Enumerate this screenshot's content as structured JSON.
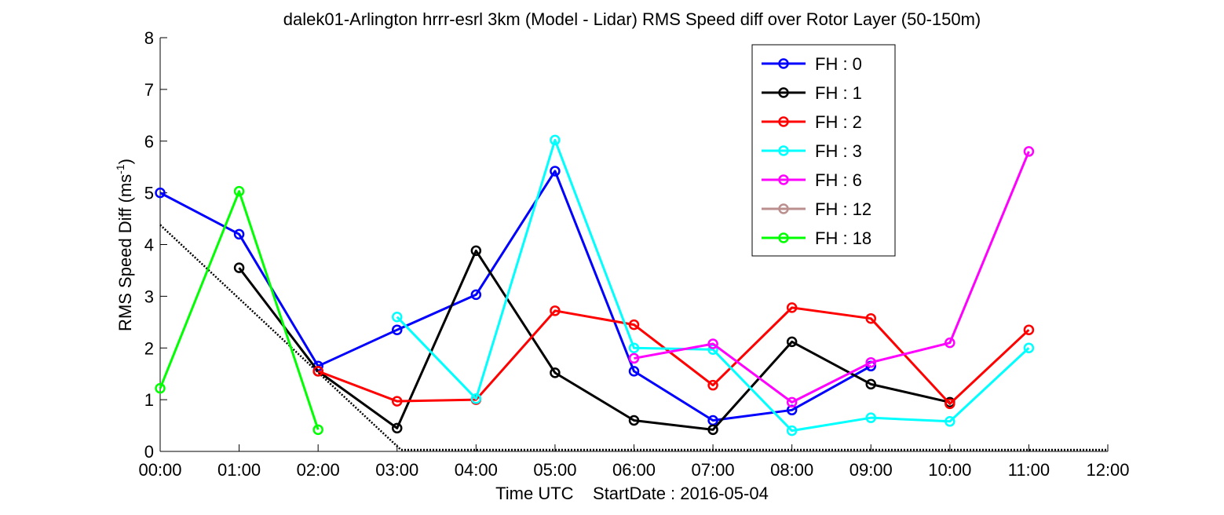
{
  "chart_data": {
    "type": "line",
    "title": "dalek01-Arlington hrrr-esrl 3km (Model - Lidar) RMS Speed diff over Rotor Layer (50-150m)",
    "xlabel": "Time UTC    StartDate : 2016-05-04",
    "ylabel_main": "RMS Speed Diff (ms",
    "ylabel_sup": "-1",
    "ylabel_close": ")",
    "xlim": [
      0,
      12
    ],
    "ylim": [
      0,
      8
    ],
    "x_ticks": [
      0,
      1,
      2,
      3,
      4,
      5,
      6,
      7,
      8,
      9,
      10,
      11,
      12
    ],
    "x_tick_labels": [
      "00:00",
      "01:00",
      "02:00",
      "03:00",
      "04:00",
      "05:00",
      "06:00",
      "07:00",
      "08:00",
      "09:00",
      "10:00",
      "11:00",
      "12:00"
    ],
    "y_ticks": [
      0,
      1,
      2,
      3,
      4,
      5,
      6,
      7,
      8
    ],
    "y_tick_labels": [
      "0",
      "1",
      "2",
      "3",
      "4",
      "5",
      "6",
      "7",
      "8"
    ],
    "grid": false,
    "legend_position": "top-right",
    "series": [
      {
        "name": "FH : 0",
        "color": "#0000ff",
        "x": [
          0,
          1,
          2,
          3,
          4,
          5,
          6,
          7,
          8,
          9
        ],
        "y": [
          5.0,
          4.2,
          1.65,
          2.35,
          3.03,
          5.42,
          1.55,
          0.6,
          0.8,
          1.65
        ]
      },
      {
        "name": "FH : 1",
        "color": "#000000",
        "x": [
          1,
          2,
          3,
          4,
          5,
          6,
          7,
          8,
          9,
          10
        ],
        "y": [
          3.55,
          1.55,
          0.45,
          3.88,
          1.52,
          0.6,
          0.42,
          2.12,
          1.3,
          0.95
        ]
      },
      {
        "name": "FH : 2",
        "color": "#ff0000",
        "x": [
          2,
          3,
          4,
          5,
          6,
          7,
          8,
          9,
          10,
          11
        ],
        "y": [
          1.55,
          0.97,
          1.0,
          2.72,
          2.45,
          1.28,
          2.78,
          2.57,
          0.92,
          2.35
        ]
      },
      {
        "name": "FH : 3",
        "color": "#00ffff",
        "x": [
          3,
          4,
          5,
          6,
          7,
          8,
          9,
          10,
          11
        ],
        "y": [
          2.6,
          1.02,
          6.02,
          2.0,
          1.97,
          0.4,
          0.65,
          0.58,
          2.0
        ]
      },
      {
        "name": "FH : 6",
        "color": "#ff00ff",
        "x": [
          6,
          7,
          8,
          9,
          10,
          11
        ],
        "y": [
          1.8,
          2.08,
          0.95,
          1.72,
          2.1,
          5.8
        ]
      },
      {
        "name": "FH : 12",
        "color": "#bc8f8f",
        "x": [],
        "y": []
      },
      {
        "name": "FH : 18",
        "color": "#00ff00",
        "x": [
          0,
          1,
          2
        ],
        "y": [
          1.22,
          5.03,
          0.42
        ]
      }
    ],
    "trend_line": {
      "color": "#000000",
      "style": "dotted",
      "x": [
        0,
        3.05,
        3.05,
        12
      ],
      "y": [
        4.38,
        0.03,
        0.03,
        0.03
      ]
    }
  }
}
